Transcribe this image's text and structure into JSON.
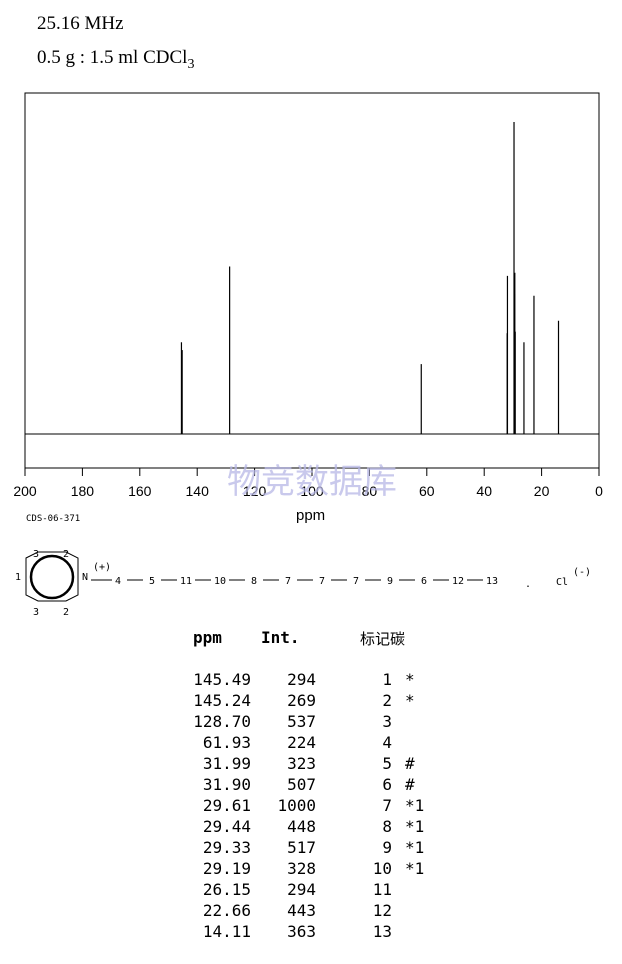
{
  "header": {
    "frequency": "25.16 MHz",
    "sample": "0.5 g : 1.5 ml CDCl",
    "sample_subscript": "3"
  },
  "code": "CDS-06-371",
  "watermark": "物竞数据库",
  "chart_data": {
    "type": "line",
    "xlabel": "ppm",
    "xlim": [
      200,
      0
    ],
    "x_reversed": true,
    "x_ticks": [
      200,
      180,
      160,
      140,
      120,
      100,
      80,
      60,
      40,
      20,
      0
    ],
    "y_max": 1000,
    "peaks": [
      {
        "ppm": 145.49,
        "intensity": 294
      },
      {
        "ppm": 145.24,
        "intensity": 269
      },
      {
        "ppm": 128.7,
        "intensity": 537
      },
      {
        "ppm": 61.93,
        "intensity": 224
      },
      {
        "ppm": 31.99,
        "intensity": 323
      },
      {
        "ppm": 31.9,
        "intensity": 507
      },
      {
        "ppm": 29.61,
        "intensity": 1000
      },
      {
        "ppm": 29.44,
        "intensity": 448
      },
      {
        "ppm": 29.33,
        "intensity": 517
      },
      {
        "ppm": 29.19,
        "intensity": 328
      },
      {
        "ppm": 26.15,
        "intensity": 294
      },
      {
        "ppm": 22.66,
        "intensity": 443
      },
      {
        "ppm": 14.11,
        "intensity": 363
      }
    ]
  },
  "structure": {
    "ring_labels": [
      "3",
      "2",
      "1",
      "N",
      "3",
      "2"
    ],
    "charge": "(+)",
    "chain": [
      "4",
      "5",
      "11",
      "10",
      "8",
      "7",
      "7",
      "7",
      "9",
      "6",
      "12",
      "13"
    ],
    "separator": ".",
    "counterion": "Cl",
    "counterion_charge": "(-)"
  },
  "table": {
    "headers": {
      "ppm": "ppm",
      "int": "Int.",
      "carbon": "标记碳"
    },
    "rows": [
      {
        "ppm": "145.49",
        "int": "294",
        "atom": "1",
        "mark": "*"
      },
      {
        "ppm": "145.24",
        "int": "269",
        "atom": "2",
        "mark": "*"
      },
      {
        "ppm": "128.70",
        "int": "537",
        "atom": "3",
        "mark": ""
      },
      {
        "ppm": "61.93",
        "int": "224",
        "atom": "4",
        "mark": ""
      },
      {
        "ppm": "31.99",
        "int": "323",
        "atom": "5",
        "mark": "#"
      },
      {
        "ppm": "31.90",
        "int": "507",
        "atom": "6",
        "mark": "#"
      },
      {
        "ppm": "29.61",
        "int": "1000",
        "atom": "7",
        "mark": "*1"
      },
      {
        "ppm": "29.44",
        "int": "448",
        "atom": "8",
        "mark": "*1"
      },
      {
        "ppm": "29.33",
        "int": "517",
        "atom": "9",
        "mark": "*1"
      },
      {
        "ppm": "29.19",
        "int": "328",
        "atom": "10",
        "mark": "*1"
      },
      {
        "ppm": "26.15",
        "int": "294",
        "atom": "11",
        "mark": ""
      },
      {
        "ppm": "22.66",
        "int": "443",
        "atom": "12",
        "mark": ""
      },
      {
        "ppm": "14.11",
        "int": "363",
        "atom": "13",
        "mark": ""
      }
    ]
  }
}
